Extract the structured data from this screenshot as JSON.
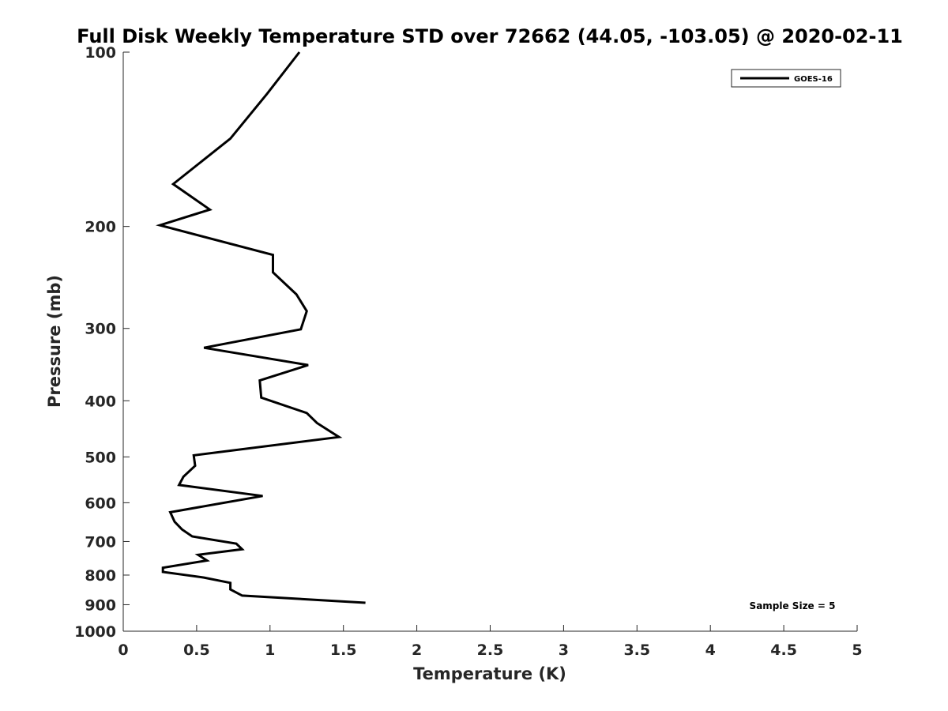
{
  "chart_data": {
    "type": "line",
    "title": "Full Disk Weekly Temperature STD over 72662 (44.05, -103.05) @ 2020-02-11",
    "xlabel": "Temperature (K)",
    "ylabel": "Pressure (mb)",
    "xlim": [
      0,
      5
    ],
    "ylim": [
      100,
      1000
    ],
    "y_scale": "log",
    "y_reversed": true,
    "x_ticks": [
      0,
      0.5,
      1,
      1.5,
      2,
      2.5,
      3,
      3.5,
      4,
      4.5,
      5
    ],
    "x_tick_labels": [
      "0",
      "0.5",
      "1",
      "1.5",
      "2",
      "2.5",
      "3",
      "3.5",
      "4",
      "4.5",
      "5"
    ],
    "y_ticks": [
      100,
      200,
      300,
      400,
      500,
      600,
      700,
      800,
      900,
      1000
    ],
    "y_tick_labels": [
      "100",
      "200",
      "300",
      "400",
      "500",
      "600",
      "700",
      "800",
      "900",
      "1000"
    ],
    "grid": false,
    "legend_position": "top-right",
    "annotation": "Sample Size = 5",
    "series": [
      {
        "name": "GOES-16",
        "color": "#000000",
        "points": [
          [
            1.2,
            100
          ],
          [
            0.98,
            118
          ],
          [
            0.73,
            141
          ],
          [
            0.34,
            169
          ],
          [
            0.59,
            187
          ],
          [
            0.25,
            199
          ],
          [
            1.02,
            224
          ],
          [
            1.02,
            240
          ],
          [
            1.18,
            262
          ],
          [
            1.25,
            280
          ],
          [
            1.21,
            301
          ],
          [
            0.55,
            324
          ],
          [
            1.26,
            347
          ],
          [
            0.93,
            369
          ],
          [
            0.94,
            395
          ],
          [
            1.25,
            420
          ],
          [
            1.32,
            437
          ],
          [
            1.47,
            462
          ],
          [
            0.48,
            497
          ],
          [
            0.49,
            518
          ],
          [
            0.41,
            541
          ],
          [
            0.38,
            559
          ],
          [
            0.95,
            584
          ],
          [
            0.32,
            623
          ],
          [
            0.35,
            647
          ],
          [
            0.4,
            667
          ],
          [
            0.47,
            686
          ],
          [
            0.77,
            706
          ],
          [
            0.81,
            722
          ],
          [
            0.51,
            738
          ],
          [
            0.57,
            755
          ],
          [
            0.27,
            777
          ],
          [
            0.27,
            790
          ],
          [
            0.55,
            808
          ],
          [
            0.73,
            825
          ],
          [
            0.73,
            847
          ],
          [
            0.81,
            868
          ],
          [
            1.65,
            893
          ]
        ]
      }
    ]
  }
}
